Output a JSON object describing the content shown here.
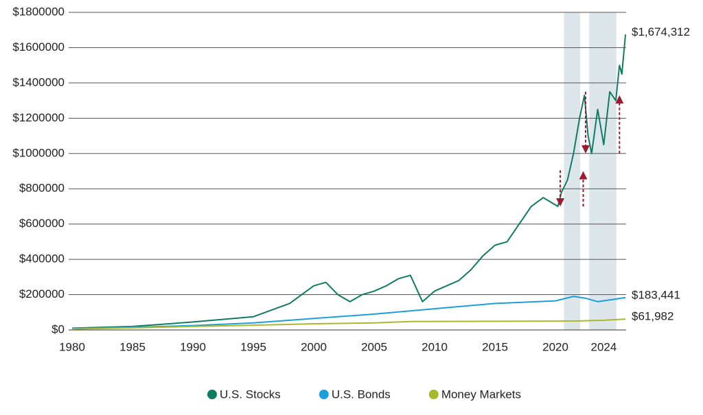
{
  "chart_data": {
    "type": "line",
    "xlim": [
      1980,
      2025.85
    ],
    "xticks": [
      1980,
      1985,
      1990,
      1995,
      2000,
      2005,
      2010,
      2015,
      2020,
      2024
    ],
    "ylim": [
      0,
      1800000
    ],
    "yticks": [
      {
        "value": 0,
        "label": "$0"
      },
      {
        "value": 200000,
        "label": "$200000"
      },
      {
        "value": 400000,
        "label": "$400000"
      },
      {
        "value": 600000,
        "label": "$600000"
      },
      {
        "value": 800000,
        "label": "$800000"
      },
      {
        "value": 1000000,
        "label": "$1000000"
      },
      {
        "value": 1200000,
        "label": "$1200000"
      },
      {
        "value": 1400000,
        "label": "$1400000"
      },
      {
        "value": 1600000,
        "label": "$1600000"
      },
      {
        "value": 1800000,
        "label": "$1800000"
      }
    ],
    "grid": true,
    "legend": "bottom",
    "shaded_regions": [
      [
        2020.7,
        2022.05
      ],
      [
        2022.8,
        2025.05
      ]
    ],
    "shade_color": "#dde6ea",
    "arrow_color": "#9b1b30",
    "arrows": [
      {
        "x": 2020.4,
        "from": 905000,
        "to": 700000
      },
      {
        "x": 2022.3,
        "from": 700000,
        "to": 900000
      },
      {
        "x": 2022.5,
        "from": 1350000,
        "to": 1000000
      },
      {
        "x": 2025.3,
        "from": 1000000,
        "to": 1330000
      }
    ],
    "series": [
      {
        "name": "U.S. Stocks",
        "color": "#0e7c61",
        "end_label": "$1,674,312",
        "x": [
          1980,
          1985,
          1990,
          1995,
          1998,
          2000,
          2001,
          2002,
          2003,
          2004,
          2005,
          2006,
          2007,
          2008,
          2009,
          2010,
          2011,
          2012,
          2013,
          2014,
          2015,
          2016,
          2017,
          2018,
          2019,
          2020.2,
          2020.5,
          2021,
          2021.5,
          2022,
          2022.4,
          2022.7,
          2023,
          2023.5,
          2024,
          2024.5,
          2025,
          2025.3,
          2025.5,
          2025.8
        ],
        "values": [
          10000,
          20000,
          45000,
          75000,
          150000,
          250000,
          270000,
          200000,
          160000,
          200000,
          220000,
          250000,
          290000,
          310000,
          160000,
          220000,
          250000,
          280000,
          340000,
          420000,
          480000,
          500000,
          600000,
          700000,
          750000,
          700000,
          780000,
          850000,
          1000000,
          1200000,
          1330000,
          1100000,
          1000000,
          1250000,
          1050000,
          1350000,
          1300000,
          1500000,
          1450000,
          1674312
        ]
      },
      {
        "name": "U.S. Bonds",
        "color": "#1a9fde",
        "end_label": "$183,441",
        "x": [
          1980,
          1985,
          1990,
          1995,
          2000,
          2005,
          2010,
          2015,
          2020,
          2021.5,
          2022.5,
          2023.5,
          2024.5,
          2025.8
        ],
        "values": [
          8000,
          15000,
          25000,
          40000,
          65000,
          90000,
          120000,
          150000,
          165000,
          190000,
          180000,
          160000,
          170000,
          183441
        ]
      },
      {
        "name": "Money Markets",
        "color": "#a9b82a",
        "end_label": "$61,982",
        "x": [
          1980,
          1985,
          1990,
          1995,
          2000,
          2005,
          2008,
          2015,
          2020,
          2022,
          2024,
          2025.8
        ],
        "values": [
          5000,
          12000,
          20000,
          27000,
          35000,
          40000,
          48000,
          49000,
          50000,
          51000,
          55000,
          61982
        ]
      }
    ]
  }
}
